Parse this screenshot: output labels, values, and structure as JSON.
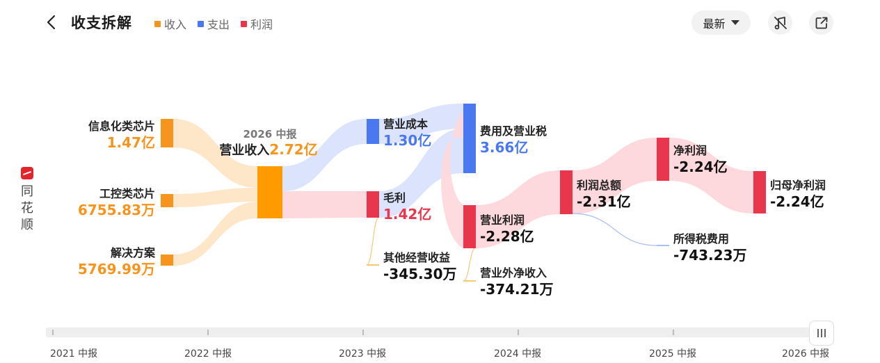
{
  "header": {
    "title": "收支拆解",
    "legend": [
      {
        "label": "收入",
        "color": "#f7941d"
      },
      {
        "label": "支出",
        "color": "#4a78f0"
      },
      {
        "label": "利润",
        "color": "#e8364d"
      }
    ],
    "select_value": "最新"
  },
  "brand": {
    "text": "同花顺"
  },
  "colors": {
    "income": "#f7941d",
    "expense": "#4a78f0",
    "profit": "#e8364d",
    "neutral": "#111111",
    "total": "#ff9a00",
    "period_label": "#777777",
    "income_link": "#fde7c8",
    "expense_link": "#dbe4fc",
    "profit_link": "#fdd9dd",
    "thin_income": "#f5c878",
    "thin_expense": "#a9bdf5"
  },
  "chart_data": {
    "type": "sankey",
    "period": "2026 中报",
    "nodes": [
      {
        "id": "n1",
        "label": "信息化类芯片",
        "value": "1.47亿",
        "kind": "income"
      },
      {
        "id": "n2",
        "label": "工控类芯片",
        "value": "6755.83万",
        "kind": "income"
      },
      {
        "id": "n3",
        "label": "解决方案",
        "value": "5769.99万",
        "kind": "income"
      },
      {
        "id": "n4",
        "label": "营业收入",
        "value": "2.72亿",
        "kind": "total"
      },
      {
        "id": "n5",
        "label": "营业成本",
        "value": "1.30亿",
        "kind": "expense"
      },
      {
        "id": "n6",
        "label": "毛利",
        "value": "1.42亿",
        "kind": "profit"
      },
      {
        "id": "n7",
        "label": "其他经营收益",
        "value": "-345.30万",
        "kind": "neutral"
      },
      {
        "id": "n8",
        "label": "费用及营业税",
        "value": "3.66亿",
        "kind": "expense"
      },
      {
        "id": "n9",
        "label": "营业利润",
        "value": "-2.28亿",
        "kind": "neutral"
      },
      {
        "id": "n10",
        "label": "营业外净收入",
        "value": "-374.21万",
        "kind": "neutral"
      },
      {
        "id": "n11",
        "label": "利润总额",
        "value": "-2.31亿",
        "kind": "neutral"
      },
      {
        "id": "n12",
        "label": "净利润",
        "value": "-2.24亿",
        "kind": "neutral"
      },
      {
        "id": "n13",
        "label": "所得税费用",
        "value": "-743.23万",
        "kind": "neutral"
      },
      {
        "id": "n14",
        "label": "归母净利润",
        "value": "-2.24亿",
        "kind": "neutral"
      }
    ],
    "links": [
      {
        "source": "n1",
        "target": "n4"
      },
      {
        "source": "n2",
        "target": "n4"
      },
      {
        "source": "n3",
        "target": "n4"
      },
      {
        "source": "n4",
        "target": "n5"
      },
      {
        "source": "n4",
        "target": "n6"
      },
      {
        "source": "n5",
        "target": "n8"
      },
      {
        "source": "n6",
        "target": "n8"
      },
      {
        "source": "n6",
        "target": "n7"
      },
      {
        "source": "n8",
        "target": "n9"
      },
      {
        "source": "n9",
        "target": "n11"
      },
      {
        "source": "n9",
        "target": "n10"
      },
      {
        "source": "n11",
        "target": "n12"
      },
      {
        "source": "n11",
        "target": "n13"
      },
      {
        "source": "n12",
        "target": "n14"
      }
    ]
  },
  "timeline": {
    "labels": [
      "2021 中报",
      "2022 中报",
      "2023 中报",
      "2024 中报",
      "2025 中报",
      "2026 中报"
    ]
  }
}
